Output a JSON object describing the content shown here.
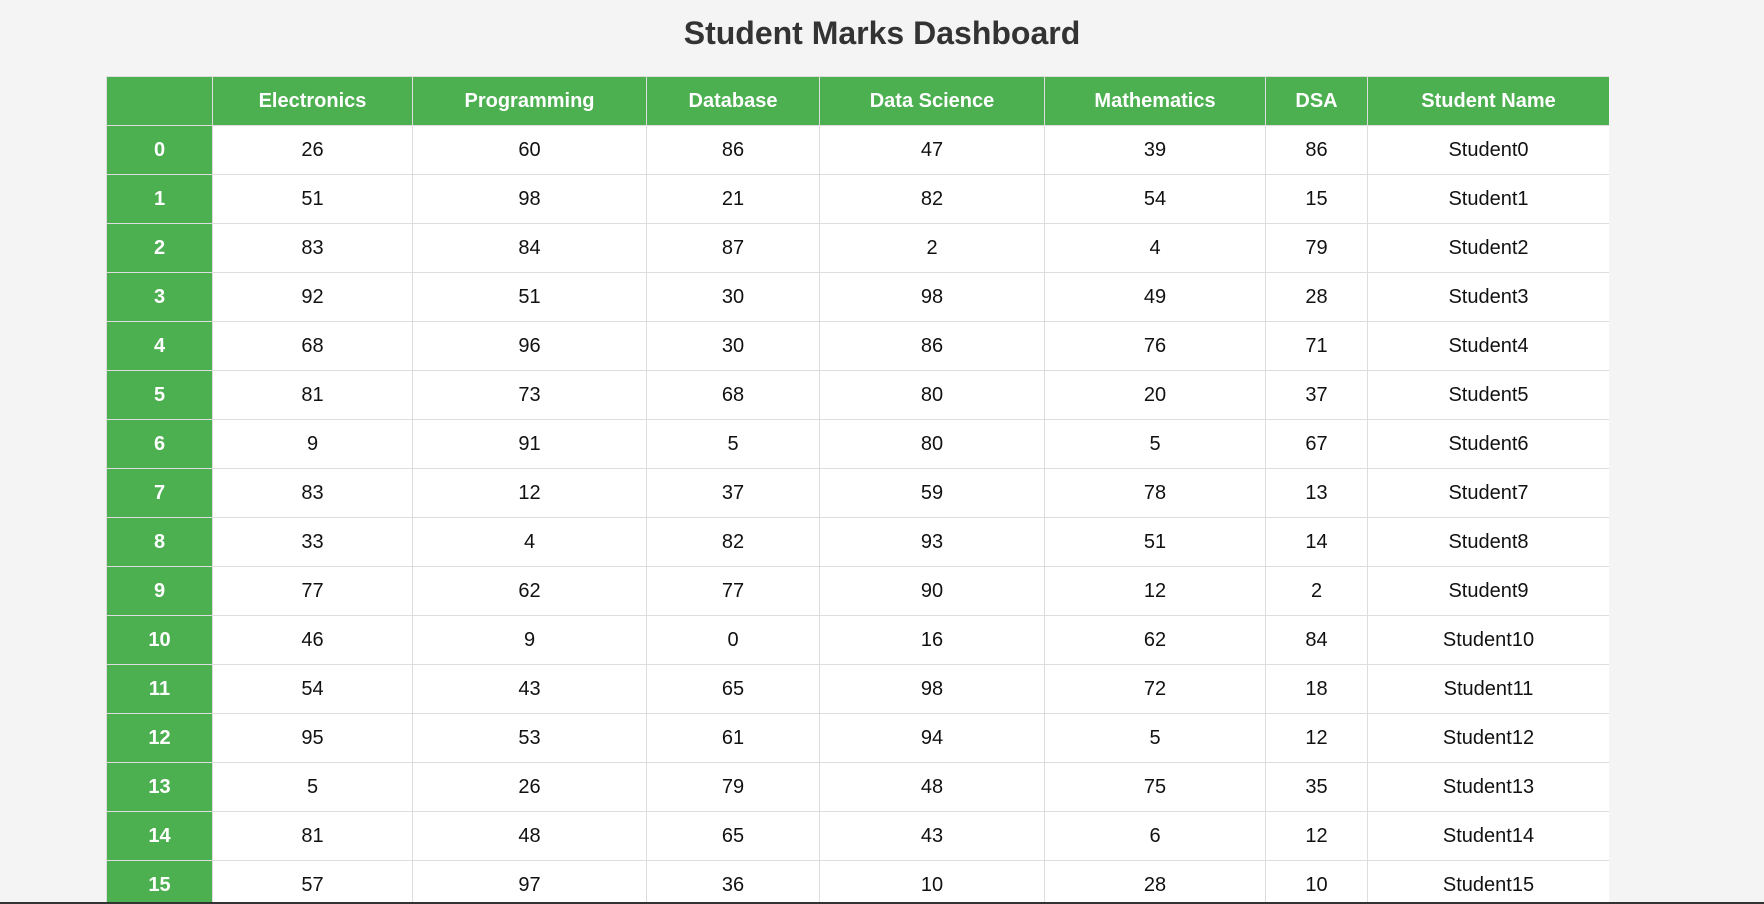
{
  "page": {
    "title": "Student Marks Dashboard"
  },
  "colors": {
    "header_bg": "#4caf50",
    "header_text": "#ffffff",
    "page_bg": "#f4f4f4"
  },
  "table": {
    "columns": [
      "",
      "Electronics",
      "Programming",
      "Database",
      "Data Science",
      "Mathematics",
      "DSA",
      "Student Name"
    ],
    "rows": [
      {
        "index": "0",
        "cells": [
          "26",
          "60",
          "86",
          "47",
          "39",
          "86",
          "Student0"
        ]
      },
      {
        "index": "1",
        "cells": [
          "51",
          "98",
          "21",
          "82",
          "54",
          "15",
          "Student1"
        ]
      },
      {
        "index": "2",
        "cells": [
          "83",
          "84",
          "87",
          "2",
          "4",
          "79",
          "Student2"
        ]
      },
      {
        "index": "3",
        "cells": [
          "92",
          "51",
          "30",
          "98",
          "49",
          "28",
          "Student3"
        ]
      },
      {
        "index": "4",
        "cells": [
          "68",
          "96",
          "30",
          "86",
          "76",
          "71",
          "Student4"
        ]
      },
      {
        "index": "5",
        "cells": [
          "81",
          "73",
          "68",
          "80",
          "20",
          "37",
          "Student5"
        ]
      },
      {
        "index": "6",
        "cells": [
          "9",
          "91",
          "5",
          "80",
          "5",
          "67",
          "Student6"
        ]
      },
      {
        "index": "7",
        "cells": [
          "83",
          "12",
          "37",
          "59",
          "78",
          "13",
          "Student7"
        ]
      },
      {
        "index": "8",
        "cells": [
          "33",
          "4",
          "82",
          "93",
          "51",
          "14",
          "Student8"
        ]
      },
      {
        "index": "9",
        "cells": [
          "77",
          "62",
          "77",
          "90",
          "12",
          "2",
          "Student9"
        ]
      },
      {
        "index": "10",
        "cells": [
          "46",
          "9",
          "0",
          "16",
          "62",
          "84",
          "Student10"
        ]
      },
      {
        "index": "11",
        "cells": [
          "54",
          "43",
          "65",
          "98",
          "72",
          "18",
          "Student11"
        ]
      },
      {
        "index": "12",
        "cells": [
          "95",
          "53",
          "61",
          "94",
          "5",
          "12",
          "Student12"
        ]
      },
      {
        "index": "13",
        "cells": [
          "5",
          "26",
          "79",
          "48",
          "75",
          "35",
          "Student13"
        ]
      },
      {
        "index": "14",
        "cells": [
          "81",
          "48",
          "65",
          "43",
          "6",
          "12",
          "Student14"
        ]
      },
      {
        "index": "15",
        "cells": [
          "57",
          "97",
          "36",
          "10",
          "28",
          "10",
          "Student15"
        ]
      }
    ]
  }
}
